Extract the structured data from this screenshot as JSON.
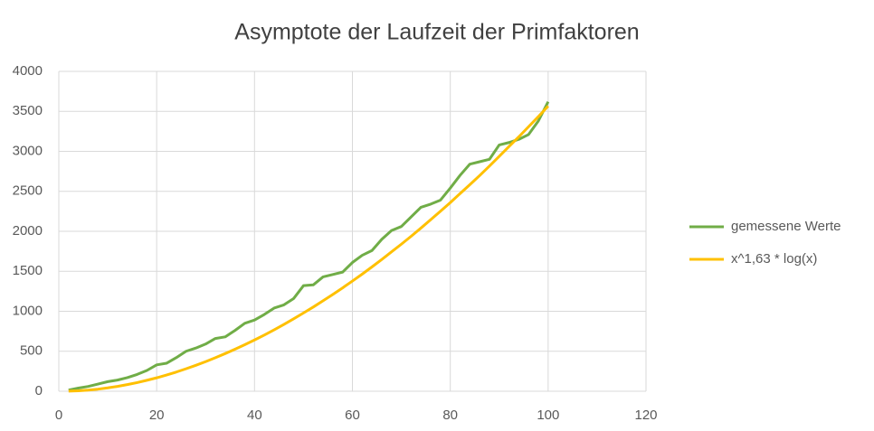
{
  "chart_data": {
    "type": "line",
    "title": "Asymptote der Laufzeit der Primfaktoren",
    "x": [
      2,
      4,
      6,
      8,
      10,
      12,
      14,
      16,
      18,
      20,
      22,
      24,
      26,
      28,
      30,
      32,
      34,
      36,
      38,
      40,
      42,
      44,
      46,
      48,
      50,
      52,
      54,
      56,
      58,
      60,
      62,
      64,
      66,
      68,
      70,
      72,
      74,
      76,
      78,
      80,
      82,
      84,
      86,
      88,
      90,
      92,
      94,
      96,
      98,
      100
    ],
    "series": [
      {
        "name": "gemessene Werte",
        "color": "#70ad47",
        "values": [
          15,
          40,
          60,
          90,
          120,
          140,
          170,
          210,
          260,
          330,
          350,
          420,
          500,
          540,
          590,
          660,
          680,
          760,
          850,
          890,
          960,
          1040,
          1080,
          1160,
          1320,
          1330,
          1430,
          1460,
          1490,
          1610,
          1700,
          1760,
          1900,
          2010,
          2060,
          2180,
          2300,
          2340,
          2390,
          2540,
          2700,
          2840,
          2870,
          2900,
          3080,
          3110,
          3150,
          3210,
          3380,
          3620
        ]
      },
      {
        "name": "x^1,63 * log(x)",
        "color": "#ffc000",
        "values": [
          1,
          6,
          14,
          26,
          42,
          61,
          83,
          108,
          137,
          168,
          203,
          240,
          281,
          324,
          370,
          419,
          471,
          525,
          582,
          641,
          703,
          768,
          836,
          906,
          979,
          1053,
          1131,
          1211,
          1293,
          1378,
          1465,
          1555,
          1648,
          1743,
          1839,
          1938,
          2040,
          2145,
          2251,
          2359,
          2472,
          2583,
          2697,
          2816,
          2937,
          3060,
          3181,
          3308,
          3434,
          3566
        ]
      }
    ],
    "xlim": [
      0,
      120
    ],
    "xticks": [
      0,
      20,
      40,
      60,
      80,
      100,
      120
    ],
    "ylim": [
      0,
      4000
    ],
    "yticks": [
      0,
      500,
      1000,
      1500,
      2000,
      2500,
      3000,
      3500,
      4000
    ],
    "grid": true,
    "legend": "right"
  }
}
